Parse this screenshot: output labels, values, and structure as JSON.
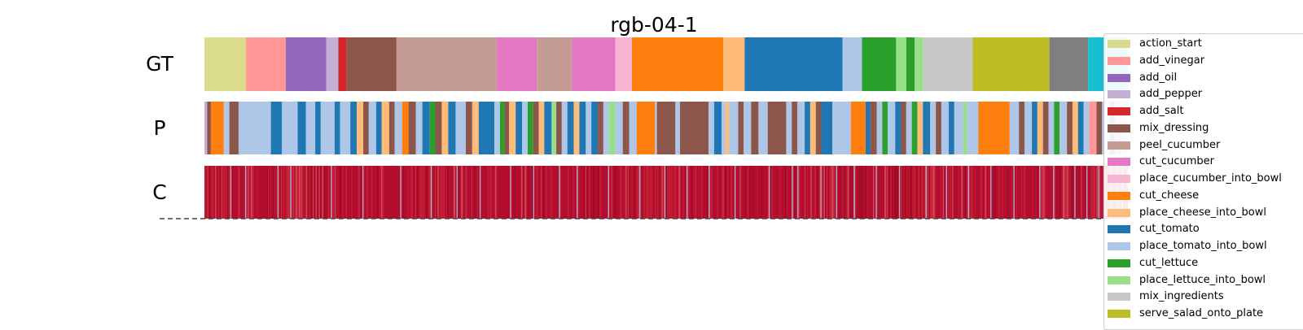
{
  "chart_data": {
    "type": "segmentation_timeline",
    "title": "rgb-04-1",
    "rows": [
      "GT",
      "P",
      "C"
    ],
    "x_range": [
      0,
      1
    ],
    "legend": [
      {
        "label": "action_start",
        "color": "#dbdb8d"
      },
      {
        "label": "add_vinegar",
        "color": "#ff9896"
      },
      {
        "label": "add_oil",
        "color": "#9467bd"
      },
      {
        "label": "add_pepper",
        "color": "#c5b0d5"
      },
      {
        "label": "add_salt",
        "color": "#d62728"
      },
      {
        "label": "mix_dressing",
        "color": "#8c564b"
      },
      {
        "label": "peel_cucumber",
        "color": "#c49c94"
      },
      {
        "label": "cut_cucumber",
        "color": "#e377c2"
      },
      {
        "label": "place_cucumber_into_bowl",
        "color": "#f7b6d2"
      },
      {
        "label": "cut_cheese",
        "color": "#ff7f0e"
      },
      {
        "label": "place_cheese_into_bowl",
        "color": "#ffbb78"
      },
      {
        "label": "cut_tomato",
        "color": "#1f77b4"
      },
      {
        "label": "place_tomato_into_bowl",
        "color": "#aec7e8"
      },
      {
        "label": "cut_lettuce",
        "color": "#2ca02c"
      },
      {
        "label": "place_lettuce_into_bowl",
        "color": "#98df8a"
      },
      {
        "label": "mix_ingredients",
        "color": "#c7c7c7"
      },
      {
        "label": "serve_salad_onto_plate",
        "color": "#bcbd22"
      }
    ],
    "extra_colors": {
      "unlabeled_gray": "#7f7f7f",
      "cyan": "#17becf",
      "confidence": "#b30e2e"
    },
    "gt_segments": [
      {
        "label": "action_start",
        "start": 0.0,
        "end": 0.045
      },
      {
        "label": "add_vinegar",
        "start": 0.045,
        "end": 0.088
      },
      {
        "label": "add_oil",
        "start": 0.088,
        "end": 0.132
      },
      {
        "label": "add_pepper",
        "start": 0.132,
        "end": 0.145
      },
      {
        "label": "add_salt",
        "start": 0.145,
        "end": 0.154
      },
      {
        "label": "mix_dressing",
        "start": 0.154,
        "end": 0.208
      },
      {
        "label": "peel_cucumber",
        "start": 0.208,
        "end": 0.317
      },
      {
        "label": "cut_cucumber",
        "start": 0.317,
        "end": 0.36
      },
      {
        "label": "peel_cucumber",
        "start": 0.36,
        "end": 0.398
      },
      {
        "label": "cut_cucumber",
        "start": 0.398,
        "end": 0.445
      },
      {
        "label": "place_cucumber_into_bowl",
        "start": 0.445,
        "end": 0.463
      },
      {
        "label": "cut_cheese",
        "start": 0.463,
        "end": 0.562
      },
      {
        "label": "place_cheese_into_bowl",
        "start": 0.562,
        "end": 0.585
      },
      {
        "label": "cut_tomato",
        "start": 0.585,
        "end": 0.691
      },
      {
        "label": "place_tomato_into_bowl",
        "start": 0.691,
        "end": 0.712
      },
      {
        "label": "cut_lettuce",
        "start": 0.712,
        "end": 0.749
      },
      {
        "label": "place_lettuce_into_bowl",
        "start": 0.749,
        "end": 0.76
      },
      {
        "label": "cut_lettuce",
        "start": 0.76,
        "end": 0.769
      },
      {
        "label": "place_lettuce_into_bowl",
        "start": 0.769,
        "end": 0.778
      },
      {
        "label": "mix_ingredients",
        "start": 0.778,
        "end": 0.832
      },
      {
        "label": "serve_salad_onto_plate",
        "start": 0.832,
        "end": 0.915
      },
      {
        "label": "unlabeled_gray",
        "start": 0.915,
        "end": 0.957
      },
      {
        "label": "cyan",
        "start": 0.957,
        "end": 1.0
      }
    ],
    "p_segments": [
      {
        "label": "add_pepper",
        "start": 0.0,
        "end": 0.003
      },
      {
        "label": "mix_dressing",
        "start": 0.003,
        "end": 0.007
      },
      {
        "label": "cut_cheese",
        "start": 0.007,
        "end": 0.021
      },
      {
        "label": "place_tomato_into_bowl",
        "start": 0.021,
        "end": 0.027
      },
      {
        "label": "mix_dressing",
        "start": 0.027,
        "end": 0.037
      },
      {
        "label": "place_tomato_into_bowl",
        "start": 0.037,
        "end": 0.072
      },
      {
        "label": "cut_tomato",
        "start": 0.072,
        "end": 0.084
      },
      {
        "label": "place_tomato_into_bowl",
        "start": 0.084,
        "end": 0.101
      },
      {
        "label": "cut_tomato",
        "start": 0.101,
        "end": 0.11
      },
      {
        "label": "place_tomato_into_bowl",
        "start": 0.11,
        "end": 0.12
      },
      {
        "label": "cut_tomato",
        "start": 0.12,
        "end": 0.126
      },
      {
        "label": "place_tomato_into_bowl",
        "start": 0.126,
        "end": 0.141
      },
      {
        "label": "cut_tomato",
        "start": 0.141,
        "end": 0.147
      },
      {
        "label": "place_tomato_into_bowl",
        "start": 0.147,
        "end": 0.158
      },
      {
        "label": "cut_tomato",
        "start": 0.158,
        "end": 0.165
      },
      {
        "label": "place_cheese_into_bowl",
        "start": 0.165,
        "end": 0.172
      },
      {
        "label": "mix_dressing",
        "start": 0.172,
        "end": 0.178
      },
      {
        "label": "place_tomato_into_bowl",
        "start": 0.178,
        "end": 0.186
      },
      {
        "label": "cut_tomato",
        "start": 0.186,
        "end": 0.192
      },
      {
        "label": "place_cheese_into_bowl",
        "start": 0.192,
        "end": 0.2
      },
      {
        "label": "mix_dressing",
        "start": 0.2,
        "end": 0.206
      },
      {
        "label": "place_tomato_into_bowl",
        "start": 0.206,
        "end": 0.214
      },
      {
        "label": "cut_cheese",
        "start": 0.214,
        "end": 0.221
      },
      {
        "label": "mix_dressing",
        "start": 0.221,
        "end": 0.229
      },
      {
        "label": "place_tomato_into_bowl",
        "start": 0.229,
        "end": 0.236
      },
      {
        "label": "cut_tomato",
        "start": 0.236,
        "end": 0.244
      },
      {
        "label": "cut_lettuce",
        "start": 0.244,
        "end": 0.25
      },
      {
        "label": "mix_dressing",
        "start": 0.25,
        "end": 0.257
      },
      {
        "label": "place_cheese_into_bowl",
        "start": 0.257,
        "end": 0.264
      },
      {
        "label": "cut_tomato",
        "start": 0.264,
        "end": 0.272
      },
      {
        "label": "place_tomato_into_bowl",
        "start": 0.272,
        "end": 0.283
      },
      {
        "label": "mix_dressing",
        "start": 0.283,
        "end": 0.29
      },
      {
        "label": "place_cheese_into_bowl",
        "start": 0.29,
        "end": 0.297
      },
      {
        "label": "cut_tomato",
        "start": 0.297,
        "end": 0.314
      },
      {
        "label": "place_tomato_into_bowl",
        "start": 0.314,
        "end": 0.32
      },
      {
        "label": "cut_lettuce",
        "start": 0.32,
        "end": 0.325
      },
      {
        "label": "mix_dressing",
        "start": 0.325,
        "end": 0.33
      },
      {
        "label": "place_cheese_into_bowl",
        "start": 0.33,
        "end": 0.337
      },
      {
        "label": "cut_tomato",
        "start": 0.337,
        "end": 0.344
      },
      {
        "label": "place_tomato_into_bowl",
        "start": 0.344,
        "end": 0.35
      },
      {
        "label": "cut_lettuce",
        "start": 0.35,
        "end": 0.356
      },
      {
        "label": "mix_dressing",
        "start": 0.356,
        "end": 0.362
      },
      {
        "label": "place_cheese_into_bowl",
        "start": 0.362,
        "end": 0.368
      },
      {
        "label": "cut_tomato",
        "start": 0.368,
        "end": 0.376
      },
      {
        "label": "place_lettuce_into_bowl",
        "start": 0.376,
        "end": 0.381
      },
      {
        "label": "mix_dressing",
        "start": 0.381,
        "end": 0.387
      },
      {
        "label": "place_tomato_into_bowl",
        "start": 0.387,
        "end": 0.393
      },
      {
        "label": "cut_tomato",
        "start": 0.393,
        "end": 0.4
      },
      {
        "label": "place_cheese_into_bowl",
        "start": 0.4,
        "end": 0.406
      },
      {
        "label": "cut_tomato",
        "start": 0.406,
        "end": 0.413
      },
      {
        "label": "place_tomato_into_bowl",
        "start": 0.413,
        "end": 0.419
      },
      {
        "label": "cut_tomato",
        "start": 0.419,
        "end": 0.426
      },
      {
        "label": "mix_dressing",
        "start": 0.426,
        "end": 0.432
      },
      {
        "label": "place_tomato_into_bowl",
        "start": 0.432,
        "end": 0.438
      },
      {
        "label": "place_lettuce_into_bowl",
        "start": 0.438,
        "end": 0.445
      },
      {
        "label": "place_tomato_into_bowl",
        "start": 0.445,
        "end": 0.453
      },
      {
        "label": "mix_dressing",
        "start": 0.453,
        "end": 0.46
      },
      {
        "label": "place_tomato_into_bowl",
        "start": 0.46,
        "end": 0.468
      },
      {
        "label": "cut_cheese",
        "start": 0.468,
        "end": 0.488
      },
      {
        "label": "place_tomato_into_bowl",
        "start": 0.488,
        "end": 0.49
      },
      {
        "label": "mix_dressing",
        "start": 0.49,
        "end": 0.51
      },
      {
        "label": "place_tomato_into_bowl",
        "start": 0.51,
        "end": 0.515
      },
      {
        "label": "mix_dressing",
        "start": 0.515,
        "end": 0.546
      },
      {
        "label": "place_tomato_into_bowl",
        "start": 0.546,
        "end": 0.552
      },
      {
        "label": "cut_tomato",
        "start": 0.552,
        "end": 0.56
      },
      {
        "label": "place_tomato_into_bowl",
        "start": 0.56,
        "end": 0.564
      },
      {
        "label": "place_cheese_into_bowl",
        "start": 0.564,
        "end": 0.568
      },
      {
        "label": "place_tomato_into_bowl",
        "start": 0.568,
        "end": 0.578
      },
      {
        "label": "mix_dressing",
        "start": 0.578,
        "end": 0.584
      },
      {
        "label": "place_tomato_into_bowl",
        "start": 0.584,
        "end": 0.592
      },
      {
        "label": "mix_dressing",
        "start": 0.592,
        "end": 0.6
      },
      {
        "label": "place_tomato_into_bowl",
        "start": 0.6,
        "end": 0.61
      },
      {
        "label": "mix_dressing",
        "start": 0.61,
        "end": 0.63
      },
      {
        "label": "place_tomato_into_bowl",
        "start": 0.63,
        "end": 0.636
      },
      {
        "label": "mix_dressing",
        "start": 0.636,
        "end": 0.642
      },
      {
        "label": "place_tomato_into_bowl",
        "start": 0.642,
        "end": 0.65
      },
      {
        "label": "cut_tomato",
        "start": 0.65,
        "end": 0.656
      },
      {
        "label": "place_cheese_into_bowl",
        "start": 0.656,
        "end": 0.662
      },
      {
        "label": "mix_dressing",
        "start": 0.662,
        "end": 0.668
      },
      {
        "label": "cut_tomato",
        "start": 0.668,
        "end": 0.68
      },
      {
        "label": "place_tomato_into_bowl",
        "start": 0.68,
        "end": 0.7
      },
      {
        "label": "cut_cheese",
        "start": 0.7,
        "end": 0.716
      },
      {
        "label": "cut_tomato",
        "start": 0.716,
        "end": 0.721
      },
      {
        "label": "mix_dressing",
        "start": 0.721,
        "end": 0.728
      },
      {
        "label": "place_tomato_into_bowl",
        "start": 0.728,
        "end": 0.734
      },
      {
        "label": "cut_lettuce",
        "start": 0.734,
        "end": 0.74
      },
      {
        "label": "place_tomato_into_bowl",
        "start": 0.74,
        "end": 0.748
      },
      {
        "label": "cut_tomato",
        "start": 0.748,
        "end": 0.754
      },
      {
        "label": "mix_dressing",
        "start": 0.754,
        "end": 0.76
      },
      {
        "label": "place_tomato_into_bowl",
        "start": 0.76,
        "end": 0.766
      },
      {
        "label": "cut_lettuce",
        "start": 0.766,
        "end": 0.772
      },
      {
        "label": "place_cheese_into_bowl",
        "start": 0.772,
        "end": 0.778
      },
      {
        "label": "cut_tomato",
        "start": 0.778,
        "end": 0.786
      },
      {
        "label": "place_tomato_into_bowl",
        "start": 0.786,
        "end": 0.792
      },
      {
        "label": "mix_dressing",
        "start": 0.792,
        "end": 0.798
      },
      {
        "label": "place_tomato_into_bowl",
        "start": 0.798,
        "end": 0.806
      },
      {
        "label": "cut_tomato",
        "start": 0.806,
        "end": 0.812
      },
      {
        "label": "place_tomato_into_bowl",
        "start": 0.812,
        "end": 0.822
      },
      {
        "label": "place_lettuce_into_bowl",
        "start": 0.822,
        "end": 0.826
      },
      {
        "label": "place_tomato_into_bowl",
        "start": 0.826,
        "end": 0.838
      },
      {
        "label": "cut_cheese",
        "start": 0.838,
        "end": 0.872
      },
      {
        "label": "place_tomato_into_bowl",
        "start": 0.872,
        "end": 0.882
      },
      {
        "label": "mix_dressing",
        "start": 0.882,
        "end": 0.888
      },
      {
        "label": "place_tomato_into_bowl",
        "start": 0.888,
        "end": 0.896
      },
      {
        "label": "cut_tomato",
        "start": 0.896,
        "end": 0.902
      },
      {
        "label": "place_cheese_into_bowl",
        "start": 0.902,
        "end": 0.908
      },
      {
        "label": "mix_dressing",
        "start": 0.908,
        "end": 0.914
      },
      {
        "label": "place_tomato_into_bowl",
        "start": 0.914,
        "end": 0.92
      },
      {
        "label": "cut_lettuce",
        "start": 0.92,
        "end": 0.926
      },
      {
        "label": "place_tomato_into_bowl",
        "start": 0.926,
        "end": 0.934
      },
      {
        "label": "mix_dressing",
        "start": 0.934,
        "end": 0.94
      },
      {
        "label": "place_cheese_into_bowl",
        "start": 0.94,
        "end": 0.946
      },
      {
        "label": "cut_tomato",
        "start": 0.946,
        "end": 0.952
      },
      {
        "label": "place_tomato_into_bowl",
        "start": 0.952,
        "end": 0.958
      },
      {
        "label": "add_vinegar",
        "start": 0.958,
        "end": 0.966
      },
      {
        "label": "mix_dressing",
        "start": 0.966,
        "end": 0.972
      },
      {
        "label": "place_tomato_into_bowl",
        "start": 0.972,
        "end": 0.98
      },
      {
        "label": "cut_tomato",
        "start": 0.98,
        "end": 0.986
      },
      {
        "label": "add_vinegar",
        "start": 0.986,
        "end": 0.994
      },
      {
        "label": "place_tomato_into_bowl",
        "start": 0.994,
        "end": 1.0
      }
    ],
    "c_highlights": [
      0.028,
      0.044,
      0.079,
      0.093,
      0.137,
      0.171,
      0.212,
      0.245,
      0.273,
      0.298,
      0.331,
      0.356,
      0.384,
      0.403,
      0.437,
      0.471,
      0.498,
      0.522,
      0.546,
      0.574,
      0.611,
      0.636,
      0.642,
      0.667,
      0.684,
      0.703,
      0.727,
      0.752,
      0.781,
      0.803,
      0.827,
      0.851,
      0.876,
      0.904,
      0.919,
      0.942,
      0.955,
      0.968,
      0.981,
      0.993
    ]
  }
}
